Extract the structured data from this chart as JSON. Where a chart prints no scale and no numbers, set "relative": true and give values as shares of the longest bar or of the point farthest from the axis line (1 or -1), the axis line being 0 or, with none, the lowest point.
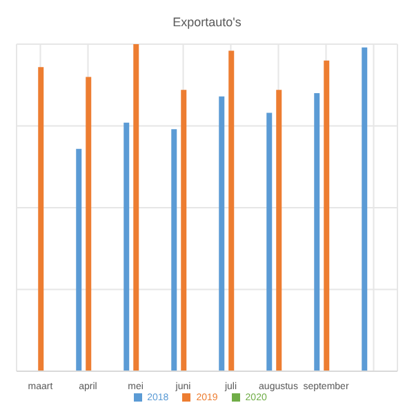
{
  "chart_data": {
    "type": "bar",
    "title": "Exportauto's",
    "relative": true,
    "categories": [
      "maart",
      "april",
      "mei",
      "juni",
      "juli",
      "augustus",
      "september",
      null
    ],
    "series": [
      {
        "name": "2018",
        "color": "#5b9bd5",
        "values": [
          null,
          0.68,
          0.76,
          0.74,
          0.84,
          0.79,
          0.85,
          0.99
        ]
      },
      {
        "name": "2019",
        "color": "#ed7d31",
        "values": [
          0.93,
          0.9,
          1,
          0.86,
          0.98,
          0.86,
          0.95,
          null
        ]
      },
      {
        "name": "2020",
        "color": "#70ad47",
        "values": [
          null,
          null,
          null,
          null,
          null,
          null,
          null,
          null
        ]
      }
    ],
    "grid": true,
    "legend": "bottom"
  }
}
